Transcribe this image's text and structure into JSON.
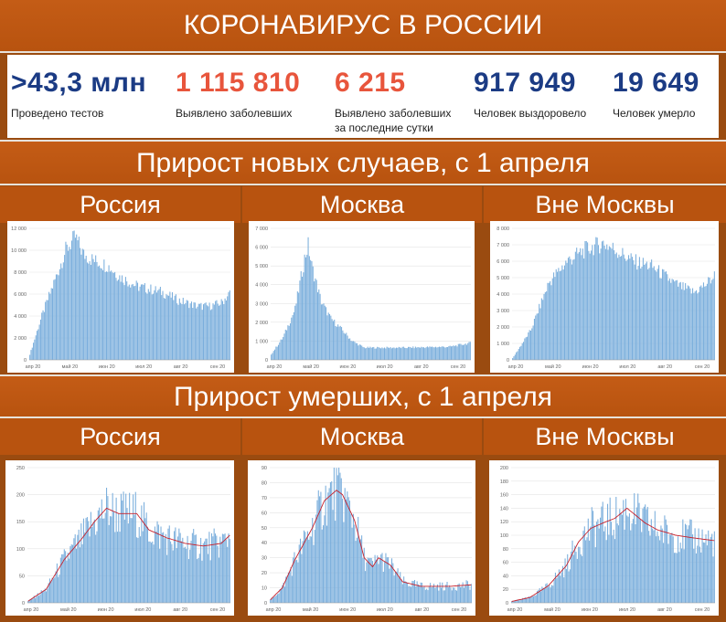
{
  "title": "КОРОНАВИРУС В РОССИИ",
  "stats": [
    {
      "value": ">43,3 млн",
      "label": "Проведено тестов",
      "color": "#1b3b84"
    },
    {
      "value": "1 115 810",
      "label": "Выявлено заболевших",
      "color": "#e8553c"
    },
    {
      "value": "6 215",
      "label": "Выявлено заболевших за последние сутки",
      "color": "#e8553c"
    },
    {
      "value": "917 949",
      "label": "Человек выздоровело",
      "color": "#1b3b84"
    },
    {
      "value": "19 649",
      "label": "Человек умерло",
      "color": "#1b3b84"
    }
  ],
  "sections": [
    {
      "title": "Прирост новых случаев, с 1 апреля"
    },
    {
      "title": "Прирост умерших, с 1 апреля"
    }
  ],
  "region_headers": [
    "Россия",
    "Москва",
    "Вне Москвы"
  ],
  "colors": {
    "bar": "#7aaedc",
    "avg_line": "#c8202a",
    "banner": "#c45c16"
  },
  "chart_data": [
    {
      "type": "bar",
      "region": "Россия",
      "metric": "Новые случаи",
      "x_ticks": [
        "апр 20",
        "май 20",
        "июн 20",
        "июл 20",
        "авг 20",
        "сен 20"
      ],
      "y_ticks": [
        "0",
        "2 000",
        "4 000",
        "6 000",
        "8 000",
        "10 000",
        "12 000"
      ],
      "ylim": [
        0,
        12000
      ],
      "anchors": [
        [
          0,
          500
        ],
        [
          10,
          4000
        ],
        [
          20,
          7000
        ],
        [
          30,
          10000
        ],
        [
          38,
          11200
        ],
        [
          45,
          9600
        ],
        [
          55,
          9000
        ],
        [
          65,
          8600
        ],
        [
          75,
          7600
        ],
        [
          90,
          6700
        ],
        [
          110,
          6200
        ],
        [
          125,
          5400
        ],
        [
          140,
          4900
        ],
        [
          150,
          4900
        ],
        [
          160,
          5200
        ],
        [
          167,
          6100
        ]
      ]
    },
    {
      "type": "bar",
      "region": "Москва",
      "metric": "Новые случаи",
      "x_ticks": [
        "апр 20",
        "май 20",
        "июн 20",
        "июл 20",
        "авг 20",
        "сен 20"
      ],
      "y_ticks": [
        "0",
        "1 000",
        "2 000",
        "3 000",
        "4 000",
        "5 000",
        "6 000",
        "7 000"
      ],
      "ylim": [
        0,
        7000
      ],
      "anchors": [
        [
          0,
          300
        ],
        [
          10,
          1200
        ],
        [
          20,
          2700
        ],
        [
          28,
          5400
        ],
        [
          31,
          6100
        ],
        [
          34,
          5000
        ],
        [
          42,
          3100
        ],
        [
          50,
          2200
        ],
        [
          58,
          1700
        ],
        [
          68,
          1000
        ],
        [
          78,
          650
        ],
        [
          90,
          650
        ],
        [
          110,
          650
        ],
        [
          150,
          700
        ],
        [
          167,
          900
        ]
      ]
    },
    {
      "type": "bar",
      "region": "Вне Москвы",
      "metric": "Новые случаи",
      "x_ticks": [
        "апр 20",
        "май 20",
        "июн 20",
        "июл 20",
        "авг 20",
        "сен 20"
      ],
      "y_ticks": [
        "0",
        "1 000",
        "2 000",
        "3 000",
        "4 000",
        "5 000",
        "6 000",
        "7 000",
        "8 000"
      ],
      "ylim": [
        0,
        8000
      ],
      "anchors": [
        [
          0,
          100
        ],
        [
          15,
          1800
        ],
        [
          30,
          4700
        ],
        [
          45,
          6000
        ],
        [
          60,
          6700
        ],
        [
          75,
          7100
        ],
        [
          85,
          6700
        ],
        [
          100,
          6000
        ],
        [
          115,
          5700
        ],
        [
          135,
          4600
        ],
        [
          150,
          4100
        ],
        [
          160,
          4600
        ],
        [
          167,
          5100
        ]
      ]
    },
    {
      "type": "bar",
      "region": "Россия",
      "metric": "Умершие",
      "x_ticks": [
        "апр 20",
        "май 20",
        "июн 20",
        "июл 20",
        "авг 20",
        "сен 20"
      ],
      "y_ticks": [
        "0",
        "50",
        "100",
        "150",
        "200",
        "250"
      ],
      "ylim": [
        0,
        250
      ],
      "anchors": [
        [
          0,
          3
        ],
        [
          15,
          25
        ],
        [
          30,
          80
        ],
        [
          45,
          120
        ],
        [
          55,
          150
        ],
        [
          65,
          175
        ],
        [
          75,
          165
        ],
        [
          90,
          165
        ],
        [
          100,
          135
        ],
        [
          115,
          120
        ],
        [
          130,
          110
        ],
        [
          145,
          105
        ],
        [
          160,
          110
        ],
        [
          167,
          125
        ]
      ]
    },
    {
      "type": "bar",
      "region": "Москва",
      "metric": "Умершие",
      "x_ticks": [
        "апр 20",
        "май 20",
        "июн 20",
        "июл 20",
        "авг 20",
        "сен 20"
      ],
      "y_ticks": [
        "0",
        "10",
        "20",
        "30",
        "40",
        "50",
        "60",
        "70",
        "80",
        "90"
      ],
      "ylim": [
        0,
        90
      ],
      "anchors": [
        [
          0,
          2
        ],
        [
          10,
          10
        ],
        [
          20,
          28
        ],
        [
          35,
          50
        ],
        [
          45,
          68
        ],
        [
          55,
          75
        ],
        [
          60,
          72
        ],
        [
          70,
          55
        ],
        [
          78,
          30
        ],
        [
          85,
          24
        ],
        [
          90,
          30
        ],
        [
          100,
          25
        ],
        [
          110,
          14
        ],
        [
          125,
          11
        ],
        [
          150,
          11
        ],
        [
          167,
          12
        ]
      ]
    },
    {
      "type": "bar",
      "region": "Вне Москвы",
      "metric": "Умершие",
      "x_ticks": [
        "апр 20",
        "май 20",
        "июн 20",
        "июл 20",
        "авг 20",
        "сен 20"
      ],
      "y_ticks": [
        "0",
        "20",
        "40",
        "60",
        "80",
        "100",
        "120",
        "140",
        "160",
        "180",
        "200"
      ],
      "ylim": [
        0,
        200
      ],
      "anchors": [
        [
          0,
          2
        ],
        [
          15,
          8
        ],
        [
          30,
          25
        ],
        [
          45,
          55
        ],
        [
          55,
          90
        ],
        [
          65,
          110
        ],
        [
          75,
          118
        ],
        [
          85,
          125
        ],
        [
          95,
          140
        ],
        [
          110,
          118
        ],
        [
          120,
          108
        ],
        [
          135,
          100
        ],
        [
          150,
          96
        ],
        [
          167,
          92
        ]
      ]
    }
  ]
}
